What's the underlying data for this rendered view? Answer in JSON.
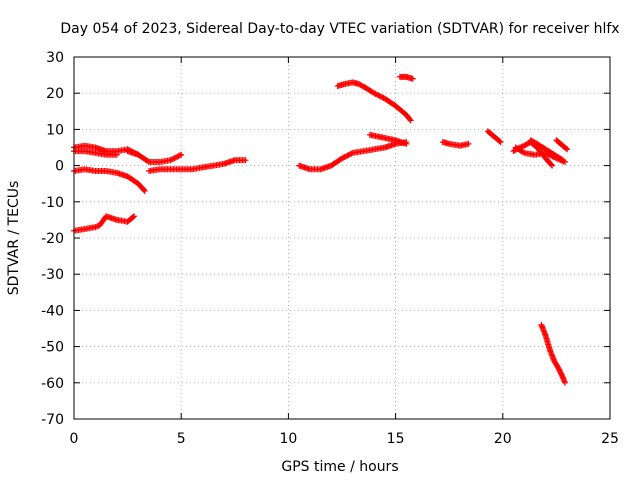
{
  "chart_data": {
    "type": "scatter",
    "title": "Day 054 of 2023, Sidereal Day-to-day VTEC variation (SDTVAR) for receiver hlfx",
    "xlabel": "GPS time / hours",
    "ylabel": "SDTVAR / TECUs",
    "xlim": [
      0,
      25
    ],
    "ylim": [
      -70,
      30
    ],
    "xticks": [
      0,
      5,
      10,
      15,
      20,
      25
    ],
    "yticks": [
      -70,
      -60,
      -50,
      -40,
      -30,
      -20,
      -10,
      0,
      10,
      20,
      30
    ],
    "xtick_labels": [
      "0",
      "5",
      "10",
      "15",
      "20",
      "25"
    ],
    "ytick_labels": [
      "-70",
      "-60",
      "-50",
      "-40",
      "-30",
      "-20",
      "-10",
      "0",
      "10",
      "20",
      "30"
    ],
    "grid": true,
    "marker_color": "#ff0000",
    "series": [
      {
        "x": [
          0.0,
          0.5,
          1.0,
          1.5,
          2.0,
          2.5,
          3.0
        ],
        "y": [
          5,
          5.5,
          5,
          4,
          4,
          4.5,
          3
        ]
      },
      {
        "x": [
          0.0,
          0.5,
          1.0,
          1.5,
          2.0
        ],
        "y": [
          4,
          4,
          3.5,
          3,
          3
        ]
      },
      {
        "x": [
          2.5,
          3.0,
          3.5,
          4.0,
          4.5,
          5.0
        ],
        "y": [
          4,
          3,
          1,
          1,
          1.5,
          3
        ]
      },
      {
        "x": [
          0.0,
          0.5,
          1.0,
          1.5,
          2.0,
          2.5,
          3.0,
          3.3
        ],
        "y": [
          -1.5,
          -1,
          -1.5,
          -1.5,
          -2,
          -3,
          -5,
          -7
        ]
      },
      {
        "x": [
          3.5,
          4.0,
          4.5,
          5.0,
          5.5,
          6.0,
          6.5,
          7.0,
          7.5,
          8.0
        ],
        "y": [
          -1.5,
          -1,
          -1,
          -1,
          -1,
          -0.5,
          0,
          0.5,
          1.5,
          1.5
        ]
      },
      {
        "x": [
          0.0,
          0.5,
          1.0,
          1.2,
          1.5,
          2.0,
          2.5,
          2.8
        ],
        "y": [
          -18,
          -17.5,
          -17,
          -16.5,
          -14,
          -15,
          -15.5,
          -14
        ]
      },
      {
        "x": [
          10.5,
          11.0,
          11.5,
          12.0,
          12.5,
          13.0,
          13.5,
          14.0,
          14.5,
          15.0,
          15.5
        ],
        "y": [
          0,
          -1,
          -1,
          0,
          2,
          3.5,
          4,
          4.5,
          5,
          6,
          6.5
        ]
      },
      {
        "x": [
          13.8,
          14.2,
          14.6,
          15.0,
          15.5
        ],
        "y": [
          8.5,
          8,
          7.5,
          7,
          6
        ]
      },
      {
        "x": [
          12.3,
          12.6,
          13.0,
          13.3,
          13.6,
          14.0,
          14.5,
          15.0,
          15.5,
          15.7
        ],
        "y": [
          22,
          22.5,
          23,
          22.5,
          21.5,
          20,
          18.5,
          16.5,
          14,
          12.5
        ]
      },
      {
        "x": [
          15.2,
          15.5,
          15.8
        ],
        "y": [
          24.5,
          24.5,
          24
        ]
      },
      {
        "x": [
          17.2,
          17.5,
          18.0,
          18.4
        ],
        "y": [
          6.5,
          6,
          5.5,
          6
        ]
      },
      {
        "x": [
          19.3,
          19.6,
          19.9
        ],
        "y": [
          9.5,
          8,
          6.5
        ]
      },
      {
        "x": [
          20.5,
          20.8,
          21.0,
          21.3,
          21.6,
          22.0,
          22.3
        ],
        "y": [
          4,
          5,
          5.5,
          6.5,
          5,
          2,
          0
        ]
      },
      {
        "x": [
          20.6,
          21.0,
          21.5,
          22.0,
          22.5,
          22.9
        ],
        "y": [
          5,
          3.5,
          3,
          3.5,
          2,
          1
        ]
      },
      {
        "x": [
          21.3,
          21.6,
          22.0,
          22.4,
          22.8
        ],
        "y": [
          7,
          6,
          4.5,
          3,
          1.5
        ]
      },
      {
        "x": [
          22.5,
          22.7,
          23.0
        ],
        "y": [
          7,
          6,
          4.5
        ]
      },
      {
        "x": [
          21.8,
          22.0,
          22.2,
          22.4,
          22.6,
          22.8,
          22.9
        ],
        "y": [
          -44,
          -47,
          -51,
          -54,
          -56,
          -58.5,
          -60
        ]
      }
    ]
  }
}
